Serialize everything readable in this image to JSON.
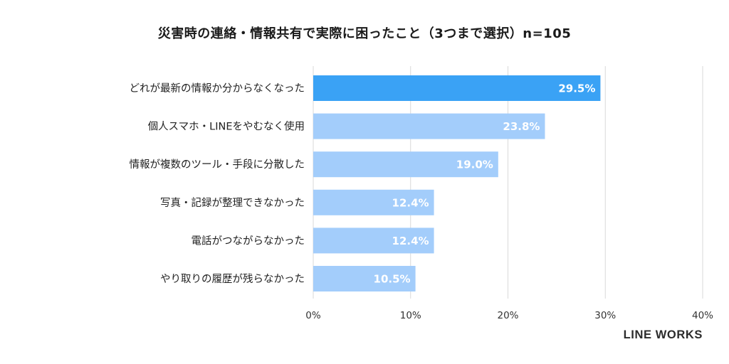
{
  "chart_data": {
    "type": "bar",
    "orientation": "horizontal",
    "title": "災害時の連絡・情報共有で実際に困ったこと（3つまで選択）n=105",
    "categories": [
      "どれが最新の情報か分からなくなった",
      "個人スマホ・LINEをやむなく使用",
      "情報が複数のツール・手段に分散した",
      "写真・記録が整理できなかった",
      "電話がつながらなかった",
      "やり取りの履歴が残らなかった"
    ],
    "values": [
      29.5,
      23.8,
      19.0,
      12.4,
      12.4,
      10.5
    ],
    "value_labels": [
      "29.5%",
      "23.8%",
      "19.0%",
      "12.4%",
      "12.4%",
      "10.5%"
    ],
    "xlim": [
      0,
      40
    ],
    "xticks": [
      0,
      10,
      20,
      30,
      40
    ],
    "xtick_labels": [
      "0%",
      "10%",
      "20%",
      "30%",
      "40%"
    ],
    "xlabel": "",
    "ylabel": "",
    "grid": true,
    "colors": {
      "highlight": "#3aa2f5",
      "default": "#a3cdfb",
      "grid": "#d9d9d9"
    }
  },
  "brand": "LINE WORKS"
}
